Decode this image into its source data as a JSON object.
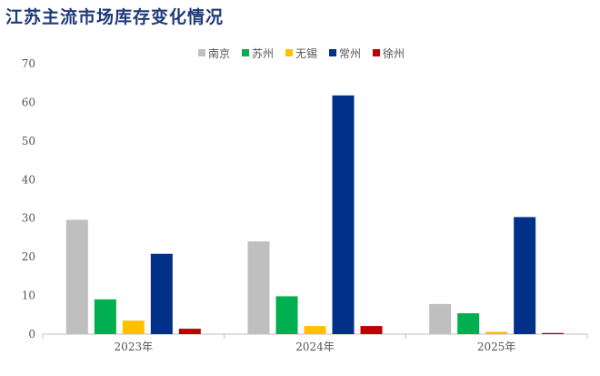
{
  "title": "江苏主流市场库存变化情况",
  "chart_data": {
    "type": "bar",
    "categories": [
      "2023年",
      "2024年",
      "2025年"
    ],
    "series": [
      {
        "name": "南京",
        "color": "#bfbfbf",
        "values": [
          29.6,
          24.0,
          7.8
        ]
      },
      {
        "name": "苏州",
        "color": "#00b050",
        "values": [
          9.0,
          9.8,
          5.4
        ]
      },
      {
        "name": "无锡",
        "color": "#ffc000",
        "values": [
          3.5,
          2.1,
          0.6
        ]
      },
      {
        "name": "常州",
        "color": "#003087",
        "values": [
          20.8,
          61.8,
          30.3
        ]
      },
      {
        "name": "徐州",
        "color": "#c00000",
        "values": [
          1.4,
          2.1,
          0.3
        ]
      }
    ],
    "ylim": [
      0,
      70
    ],
    "yticks": [
      0,
      10,
      20,
      30,
      40,
      50,
      60,
      70
    ],
    "legend_position": "top",
    "grid": false
  }
}
